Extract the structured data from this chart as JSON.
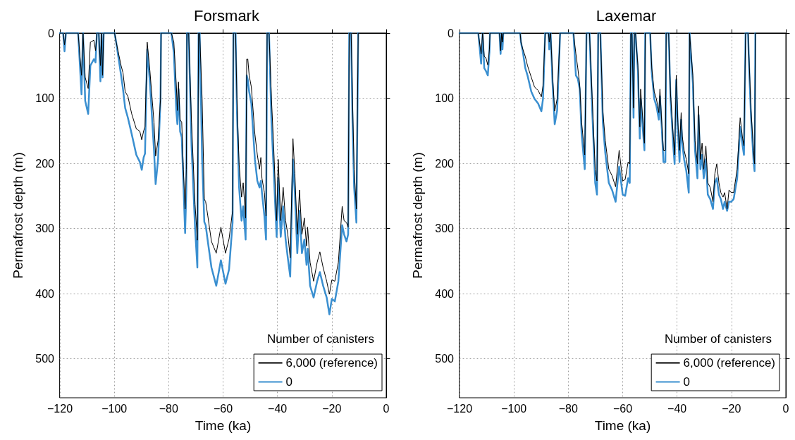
{
  "chart_data": [
    {
      "type": "line",
      "title": "Forsmark",
      "xlabel": "Time (ka)",
      "ylabel": "Permafrost depth (m)",
      "legend_title": "Number of canisters",
      "legend": "bottom right",
      "grid": true,
      "marker": "none",
      "line_style": "solid",
      "xlim": [
        -120,
        0
      ],
      "xticks": [
        -120,
        -100,
        -80,
        -60,
        -40,
        -20,
        0
      ],
      "ylim": [
        560,
        0
      ],
      "yticks": [
        0,
        100,
        200,
        300,
        400,
        500
      ],
      "x": [
        -120,
        -118.8,
        -118.3,
        -117.8,
        -113.3,
        -112.05,
        -111.5,
        -111.4,
        -110.7,
        -109.6,
        -108.8,
        -107.5,
        -106.9,
        -106.4,
        -105.7,
        -105.1,
        -104.7,
        -104.3,
        -103.9,
        -99.9,
        -99.3,
        -97.5,
        -96.8,
        -96.0,
        -95.0,
        -93.6,
        -91.9,
        -90.6,
        -89.9,
        -89.2,
        -88.7,
        -87.9,
        -86.9,
        -85.4,
        -84.8,
        -83.9,
        -83.0,
        -82.8,
        -79.0,
        -78.1,
        -77.2,
        -76.8,
        -76.4,
        -75.8,
        -75.2,
        -74.6,
        -73.95,
        -73.5,
        -73.3,
        -72.65,
        -71.6,
        -70.3,
        -69.45,
        -69.0,
        -68.6,
        -67.7,
        -66.9,
        -66.4,
        -65.6,
        -64.27,
        -62.5,
        -60.8,
        -59.1,
        -57.8,
        -56.5,
        -56.2,
        -55.4,
        -54.9,
        -54.1,
        -53.2,
        -52.6,
        -51.7,
        -51.3,
        -50.9,
        -50.4,
        -49.6,
        -48.3,
        -47.4,
        -46.6,
        -46.1,
        -45.7,
        -44.8,
        -44.2,
        -43.8,
        -43.1,
        -42.2,
        -41.4,
        -40.3,
        -39.7,
        -38.8,
        -37.9,
        -37.0,
        -36.2,
        -35.3,
        -34.3,
        -33.6,
        -32.7,
        -31.9,
        -31.0,
        -30.1,
        -29.3,
        -28.9,
        -28.0,
        -26.7,
        -25.4,
        -24.4,
        -23.2,
        -21.9,
        -20.9,
        -20.0,
        -18.9,
        -17.6,
        -16.2,
        -15.5,
        -14.6,
        -14.0,
        -13.6,
        -12.9,
        -12.4,
        -11.8,
        -10.97,
        -10.3,
        0
      ],
      "series": [
        {
          "name": "6,000 (reference)",
          "color": "#000000",
          "values": [
            0,
            0,
            18,
            0,
            0,
            65,
            0,
            0,
            68,
            85,
            14,
            11,
            27,
            0,
            0,
            50,
            0,
            65,
            0,
            0,
            14,
            50,
            61,
            90,
            97,
            124,
            147,
            151,
            164,
            150,
            144,
            14,
            58,
            137,
            189,
            165,
            101,
            0,
            0,
            14,
            79,
            119,
            75,
            133,
            137,
            209,
            270,
            209,
            0,
            0,
            137,
            263,
            318,
            0,
            0,
            101,
            255,
            259,
            281,
            320,
            338,
            298,
            338,
            316,
            273,
            0,
            0,
            101,
            201,
            252,
            230,
            284,
            40,
            40,
            65,
            83,
            155,
            187,
            209,
            191,
            223,
            245,
            281,
            0,
            0,
            101,
            173,
            288,
            194,
            288,
            237,
            288,
            309,
            345,
            162,
            216,
            309,
            241,
            309,
            284,
            327,
            298,
            352,
            381,
            352,
            336,
            360,
            381,
            401,
            379,
            381,
            352,
            266,
            288,
            291,
            298,
            0,
            0,
            101,
            209,
            270,
            0,
            0
          ]
        },
        {
          "name": "0",
          "color": "#3a8fd0",
          "values": [
            0,
            0,
            28,
            0,
            0,
            94,
            0,
            0,
            104,
            124,
            50,
            40,
            45,
            0,
            0,
            74,
            0,
            68,
            0,
            0,
            14,
            65,
            86,
            115,
            130,
            155,
            187,
            198,
            210,
            191,
            185,
            25,
            76,
            180,
            232,
            194,
            101,
            0,
            0,
            30,
            119,
            140,
            86,
            151,
            160,
            230,
            307,
            240,
            0,
            0,
            173,
            299,
            360,
            0,
            0,
            194,
            290,
            295,
            320,
            360,
            388,
            349,
            385,
            363,
            291,
            0,
            0,
            119,
            237,
            288,
            266,
            317,
            65,
            72,
            90,
            108,
            194,
            227,
            237,
            227,
            245,
            281,
            317,
            0,
            0,
            137,
            209,
            313,
            223,
            313,
            266,
            317,
            345,
            374,
            194,
            245,
            338,
            273,
            338,
            317,
            356,
            331,
            388,
            406,
            381,
            367,
            388,
            406,
            432,
            408,
            412,
            381,
            295,
            309,
            320,
            309,
            0,
            0,
            137,
            237,
            291,
            0,
            null
          ]
        }
      ]
    },
    {
      "type": "line",
      "title": "Laxemar",
      "xlabel": "Time (ka)",
      "ylabel": "Permafrost depth (m)",
      "legend_title": "Number of canisters",
      "legend": "bottom right",
      "grid": true,
      "marker": "none",
      "line_style": "solid",
      "xlim": [
        -120,
        0
      ],
      "xticks": [
        -120,
        -100,
        -80,
        -60,
        -40,
        -20,
        0
      ],
      "ylim": [
        560,
        0
      ],
      "yticks": [
        0,
        100,
        200,
        300,
        400,
        500
      ],
      "x": [
        -120,
        -113.1,
        -112.05,
        -111.5,
        -111.4,
        -110.9,
        -110.3,
        -109.6,
        -109.0,
        -108.8,
        -105.3,
        -104.9,
        -104.5,
        -104.4,
        -104.2,
        -103.9,
        -97.7,
        -97.4,
        -96.7,
        -95.8,
        -95.0,
        -93.6,
        -92.4,
        -91.1,
        -89.9,
        -89.3,
        -88.5,
        -87.3,
        -87.0,
        -86.7,
        -86.5,
        -85.8,
        -85.0,
        -84.1,
        -83.0,
        -78.1,
        -77.2,
        -76.5,
        -75.8,
        -75.1,
        -73.95,
        -73.3,
        -72.2,
        -71.2,
        -70.1,
        -69.45,
        -69.0,
        -68.2,
        -67.3,
        -66.4,
        -65.1,
        -63.9,
        -62.6,
        -61.3,
        -60.0,
        -59.1,
        -58.0,
        -57.4,
        -57.0,
        -56.6,
        -56.0,
        -55.7,
        -55.3,
        -54.4,
        -53.7,
        -53.4,
        -52.9,
        -52.0,
        -51.7,
        -49.9,
        -49.3,
        -48.4,
        -47.6,
        -46.7,
        -46.3,
        -45.7,
        -45.0,
        -44.3,
        -44.0,
        -43.1,
        -42.4,
        -41.4,
        -40.9,
        -40.3,
        -39.7,
        -39.1,
        -38.5,
        -38.1,
        -37.4,
        -36.6,
        -35.7,
        -35.4,
        -34.2,
        -33.4,
        -32.5,
        -32.1,
        -31.4,
        -30.8,
        -30.2,
        -29.4,
        -28.7,
        -27.8,
        -26.8,
        -26.1,
        -25.4,
        -24.6,
        -23.9,
        -23.1,
        -22.5,
        -21.6,
        -20.9,
        -20.1,
        -19.2,
        -17.9,
        -16.8,
        -15.9,
        -15.4,
        -14.8,
        -13.9,
        -13.4,
        -12.8,
        -11.9,
        -11.5,
        -11.2,
        0
      ],
      "series": [
        {
          "name": "6,000 (reference)",
          "color": "#000000",
          "values": [
            0,
            0,
            32,
            0,
            0,
            36,
            38,
            49,
            25,
            0,
            0,
            27,
            0,
            0,
            14,
            0,
            0,
            14,
            25,
            36,
            50,
            68,
            83,
            88,
            98,
            81,
            0,
            0,
            14,
            0,
            0,
            65,
            120,
            101,
            0,
            0,
            32,
            54,
            79,
            137,
            187,
            0,
            0,
            101,
            209,
            227,
            0,
            0,
            119,
            165,
            209,
            219,
            236,
            180,
            227,
            225,
            198,
            201,
            0,
            0,
            115,
            0,
            0,
            50,
            144,
            86,
            115,
            169,
            0,
            0,
            54,
            90,
            101,
            122,
            86,
            133,
            180,
            180,
            0,
            0,
            94,
            158,
            187,
            65,
            137,
            180,
            122,
            158,
            180,
            194,
            216,
            0,
            65,
            165,
            201,
            112,
            194,
            169,
            209,
            173,
            230,
            237,
            259,
            216,
            201,
            230,
            245,
            252,
            245,
            270,
            241,
            245,
            245,
            209,
            130,
            162,
            173,
            0,
            0,
            54,
            119,
            180,
            201,
            0,
            0
          ]
        },
        {
          "name": "0",
          "color": "#3a8fd0",
          "values": [
            0,
            0,
            47,
            0,
            0,
            54,
            58,
            65,
            29,
            0,
            0,
            32,
            0,
            0,
            25,
            0,
            0,
            14,
            29,
            54,
            65,
            90,
            101,
            108,
            120,
            101,
            0,
            0,
            25,
            0,
            0,
            76,
            140,
            119,
            0,
            0,
            65,
            70,
            86,
            155,
            209,
            0,
            0,
            119,
            230,
            248,
            0,
            0,
            137,
            184,
            230,
            241,
            259,
            205,
            248,
            250,
            223,
            230,
            0,
            0,
            130,
            0,
            0,
            58,
            162,
            101,
            130,
            180,
            0,
            0,
            61,
            101,
            112,
            133,
            97,
            140,
            198,
            198,
            0,
            0,
            101,
            173,
            201,
            72,
            148,
            198,
            133,
            169,
            194,
            212,
            245,
            0,
            76,
            180,
            223,
            126,
            209,
            187,
            223,
            194,
            248,
            255,
            270,
            230,
            223,
            248,
            255,
            270,
            259,
            273,
            259,
            259,
            255,
            223,
            144,
            173,
            187,
            0,
            0,
            65,
            130,
            194,
            212,
            0,
            null
          ]
        }
      ]
    }
  ]
}
